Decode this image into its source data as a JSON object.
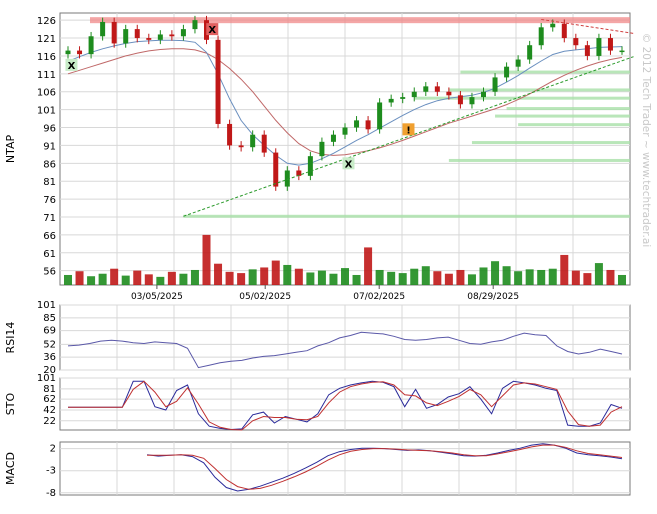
{
  "watermark": "© 2012 Tech Trader ~ www.techtrader.ai",
  "dates": [
    "03/05/2025",
    "05/02/2025",
    "07/02/2025",
    "08/29/2025"
  ],
  "chart_data": [
    {
      "type": "candlestick",
      "ylabel": "NTAP",
      "y_ticks": [
        126,
        121,
        116,
        111,
        106,
        101,
        96,
        91,
        86,
        81,
        76,
        71,
        66,
        61,
        56
      ],
      "ylim": [
        52,
        128
      ],
      "resistance_line": 126,
      "support_levels": [
        111.5,
        106.5,
        104.2,
        101.3,
        99.2,
        96.8,
        91.8,
        86.8,
        71.2
      ],
      "trend_support": {
        "from_week": 10,
        "from_price": 71.2,
        "to_week": 49,
        "to_price": 115.8
      },
      "trend_resistance": {
        "from_week": 41,
        "from_price": 126.2,
        "to_week": 49,
        "to_price": 122.3
      },
      "price": [
        117.5,
        116.5,
        121.5,
        125.5,
        119.5,
        123.5,
        121,
        120.5,
        122,
        121.5,
        123.5,
        126,
        120.5,
        97,
        91,
        90.5,
        94,
        89,
        79.5,
        84,
        82.5,
        88,
        92,
        94,
        96,
        98,
        95.5,
        103,
        104,
        104.5,
        106,
        107.5,
        106,
        105,
        102.5,
        104.5,
        106,
        110,
        113,
        115,
        119,
        124,
        125,
        121,
        119,
        116,
        121,
        117.5,
        117.5
      ],
      "ma_fast": [
        114.5,
        115.8,
        117,
        118,
        118.8,
        119.5,
        120,
        120.2,
        120.4,
        120.4,
        120.3,
        119.8,
        117,
        111,
        104,
        98,
        94,
        91,
        88.2,
        86,
        85.5,
        86,
        87.3,
        88.8,
        90.6,
        92.4,
        94,
        95.8,
        97.6,
        99.4,
        101,
        102.4,
        103.5,
        104.2,
        104.6,
        105,
        105.8,
        107,
        108.7,
        110.5,
        112.6,
        114.6,
        116.4,
        117.3,
        117.7,
        118,
        118.4,
        118.5,
        118.6
      ],
      "ma_slow": [
        111,
        112,
        113,
        114,
        115,
        116,
        116.8,
        117.4,
        117.8,
        118,
        118,
        117.7,
        116.8,
        115,
        112.5,
        109.5,
        106,
        102,
        98,
        94.5,
        91.5,
        89.5,
        88.5,
        88.2,
        88.4,
        88.9,
        89.5,
        90.3,
        91.3,
        92.4,
        93.6,
        94.8,
        96,
        97.2,
        98.2,
        99.2,
        100.2,
        101.2,
        102.4,
        103.8,
        105.4,
        107.2,
        109,
        110.6,
        112,
        113.2,
        114.2,
        115,
        115.6
      ],
      "volume": [
        1.6,
        2.2,
        1.4,
        1.8,
        2.6,
        1.5,
        2.3,
        1.7,
        1.3,
        2.1,
        1.8,
        2.4,
        8.0,
        3.4,
        2.1,
        1.9,
        2.5,
        2.8,
        3.9,
        3.2,
        2.6,
        2.0,
        2.3,
        1.8,
        2.7,
        1.6,
        6.0,
        2.4,
        2.1,
        1.9,
        2.6,
        3.0,
        2.2,
        1.8,
        2.4,
        1.7,
        2.8,
        3.8,
        3.0,
        2.2,
        2.5,
        2.4,
        2.6,
        4.8,
        2.3,
        1.9,
        3.5,
        2.4,
        1.6
      ],
      "volume_ref": [
        56
      ]
    },
    {
      "type": "line",
      "ylabel": "RSI14",
      "y_ticks": [
        101,
        85,
        69,
        52,
        36,
        20
      ],
      "ylim": [
        20,
        101
      ],
      "values": [
        50,
        51,
        53,
        56,
        57,
        56,
        54,
        53,
        55,
        54,
        53,
        47,
        23,
        26,
        29,
        31,
        32,
        35,
        37,
        38,
        40,
        42,
        44,
        50,
        54,
        60,
        63,
        67,
        66,
        65,
        62,
        58,
        57,
        58,
        60,
        61,
        57,
        53,
        52,
        55,
        57,
        62,
        66,
        64,
        63,
        50,
        43,
        40,
        42,
        46,
        43,
        40
      ]
    },
    {
      "type": "line",
      "ylabel": "STO",
      "y_ticks": [
        101,
        81,
        62,
        42,
        22
      ],
      "ylim": [
        5,
        101
      ],
      "series": [
        {
          "values": [
            47,
            47,
            47,
            47,
            47,
            47,
            95,
            95,
            48,
            42,
            78,
            88,
            35,
            12,
            8,
            6,
            7,
            33,
            38,
            18,
            30,
            25,
            20,
            35,
            70,
            82,
            88,
            92,
            95,
            93,
            85,
            48,
            80,
            45,
            52,
            66,
            72,
            85,
            62,
            35,
            82,
            95,
            92,
            88,
            82,
            78,
            14,
            12,
            12,
            18,
            52,
            45
          ]
        },
        {
          "values": [
            47,
            47,
            47,
            47,
            47,
            47,
            80,
            95,
            75,
            48,
            58,
            83,
            53,
            20,
            10,
            6,
            5,
            22,
            30,
            28,
            28,
            25,
            24,
            30,
            55,
            75,
            85,
            90,
            93,
            94,
            88,
            70,
            68,
            55,
            50,
            58,
            67,
            80,
            70,
            48,
            68,
            88,
            92,
            90,
            85,
            80,
            40,
            15,
            12,
            14,
            38,
            48
          ]
        }
      ]
    },
    {
      "type": "line",
      "ylabel": "MACD",
      "y_ticks": [
        2,
        -3,
        -8
      ],
      "ylim": [
        -8.5,
        3.5
      ],
      "series": [
        {
          "values": [
            null,
            null,
            null,
            null,
            null,
            null,
            null,
            0.6,
            0.3,
            0.5,
            0.6,
            0.2,
            -1.2,
            -4.5,
            -6.8,
            -7.6,
            -7.2,
            -6.5,
            -5.6,
            -4.7,
            -3.6,
            -2.4,
            -1.1,
            0.4,
            1.3,
            1.8,
            2.1,
            2.1,
            2.0,
            1.8,
            1.6,
            1.7,
            1.5,
            1.2,
            0.8,
            0.4,
            0.3,
            0.5,
            1.0,
            1.6,
            2.1,
            2.8,
            3.1,
            2.8,
            2.1,
            1.0,
            0.6,
            0.4,
            0.1,
            -0.3
          ]
        },
        {
          "values": [
            null,
            null,
            null,
            null,
            null,
            null,
            null,
            0.5,
            0.5,
            0.5,
            0.6,
            0.5,
            -0.2,
            -2.5,
            -5.0,
            -6.6,
            -7.2,
            -7.0,
            -6.3,
            -5.4,
            -4.4,
            -3.3,
            -2.0,
            -0.6,
            0.6,
            1.4,
            1.8,
            2.0,
            2.0,
            1.9,
            1.7,
            1.6,
            1.5,
            1.3,
            1.0,
            0.6,
            0.4,
            0.4,
            0.8,
            1.3,
            1.8,
            2.4,
            2.8,
            2.8,
            2.3,
            1.5,
            0.9,
            0.6,
            0.3,
            0.0
          ]
        }
      ]
    }
  ],
  "colors": {
    "up": "#1e8c1e",
    "down": "#c01818",
    "ma_fast": "#6a8fbf",
    "ma_slow": "#c06868",
    "rsi": "#5a58a8",
    "sto_k": "#2a2a9a",
    "sto_d": "#c03030",
    "resistance": "#f08888",
    "support": "#a8e0a8",
    "trend": "#2a9a2a",
    "trend_down": "#d04040"
  },
  "markers": [
    {
      "label": "X",
      "kind": "sell"
    },
    {
      "label": "X",
      "kind": "buy"
    },
    {
      "label": "X",
      "kind": "buy"
    },
    {
      "label": "!",
      "kind": "alert"
    }
  ]
}
